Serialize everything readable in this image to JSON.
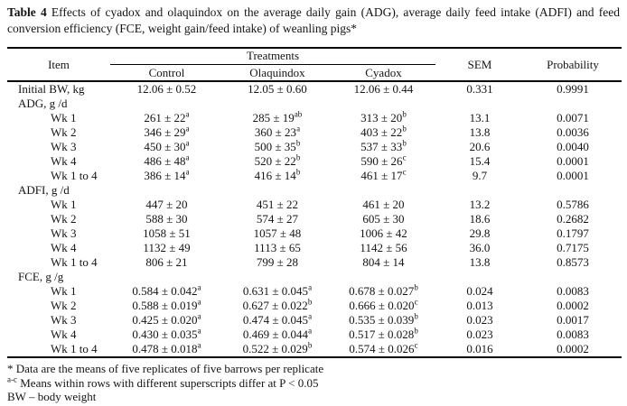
{
  "title": {
    "bold": "Table 4",
    "text": "Effects of cyadox and olaquindox on the average daily gain (ADG), average daily feed intake (ADFI) and feed conversion efficiency (FCE, weight gain/feed intake) of weanling pigs*"
  },
  "table": {
    "columns": {
      "item": "Item",
      "treatments_group": "Treatments",
      "treatments": [
        "Control",
        "Olaquindox",
        "Cyadox"
      ],
      "sem": "SEM",
      "probability": "Probability"
    },
    "rows": [
      {
        "type": "data",
        "label": "Initial BW, kg",
        "indent": false,
        "control": {
          "v": "12.06 ± 0.52"
        },
        "olaquindox": {
          "v": "12.05 ± 0.60"
        },
        "cyadox": {
          "v": "12.06 ± 0.44"
        },
        "sem": "0.331",
        "probability": "0.9991"
      },
      {
        "type": "section",
        "label": "ADG, g /d"
      },
      {
        "type": "data",
        "label": "Wk 1",
        "indent": true,
        "control": {
          "v": "261 ± 22",
          "sup": "a"
        },
        "olaquindox": {
          "v": "285 ± 19",
          "sup": "ab"
        },
        "cyadox": {
          "v": "313 ± 20",
          "sup": "b"
        },
        "sem": "13.1",
        "probability": "0.0071"
      },
      {
        "type": "data",
        "label": "Wk 2",
        "indent": true,
        "control": {
          "v": "346 ± 29",
          "sup": "a"
        },
        "olaquindox": {
          "v": "360 ± 23",
          "sup": "a"
        },
        "cyadox": {
          "v": "403 ± 22",
          "sup": "b"
        },
        "sem": "13.8",
        "probability": "0.0036"
      },
      {
        "type": "data",
        "label": "Wk 3",
        "indent": true,
        "control": {
          "v": "450 ± 30",
          "sup": "a"
        },
        "olaquindox": {
          "v": "500 ± 35",
          "sup": "b"
        },
        "cyadox": {
          "v": "537 ± 33",
          "sup": "b"
        },
        "sem": "20.6",
        "probability": "0.0040"
      },
      {
        "type": "data",
        "label": "Wk 4",
        "indent": true,
        "control": {
          "v": "486 ± 48",
          "sup": "a"
        },
        "olaquindox": {
          "v": "520 ± 22",
          "sup": "b"
        },
        "cyadox": {
          "v": "590 ± 26",
          "sup": "c"
        },
        "sem": "15.4",
        "probability": "0.0001"
      },
      {
        "type": "data",
        "label": "Wk 1 to 4",
        "indent": true,
        "control": {
          "v": "386 ± 14",
          "sup": "a"
        },
        "olaquindox": {
          "v": "416 ± 14",
          "sup": "b"
        },
        "cyadox": {
          "v": "461 ± 17",
          "sup": "c"
        },
        "sem": "9.7",
        "probability": "0.0001"
      },
      {
        "type": "section",
        "label": "ADFI, g /d"
      },
      {
        "type": "data",
        "label": "Wk 1",
        "indent": true,
        "control": {
          "v": "447 ± 20"
        },
        "olaquindox": {
          "v": "451 ± 22"
        },
        "cyadox": {
          "v": "461 ± 20"
        },
        "sem": "13.2",
        "probability": "0.5786"
      },
      {
        "type": "data",
        "label": "Wk 2",
        "indent": true,
        "control": {
          "v": "588 ± 30"
        },
        "olaquindox": {
          "v": "574 ± 27"
        },
        "cyadox": {
          "v": "605 ± 30"
        },
        "sem": "18.6",
        "probability": "0.2682"
      },
      {
        "type": "data",
        "label": "Wk 3",
        "indent": true,
        "control": {
          "v": "1058 ± 51"
        },
        "olaquindox": {
          "v": "1057 ± 48"
        },
        "cyadox": {
          "v": "1006 ± 42"
        },
        "sem": "29.8",
        "probability": "0.1797"
      },
      {
        "type": "data",
        "label": "Wk 4",
        "indent": true,
        "control": {
          "v": "1132 ± 49"
        },
        "olaquindox": {
          "v": "1113 ± 65"
        },
        "cyadox": {
          "v": "1142 ± 56"
        },
        "sem": "36.0",
        "probability": "0.7175"
      },
      {
        "type": "data",
        "label": "Wk 1 to 4",
        "indent": true,
        "control": {
          "v": "806 ± 21"
        },
        "olaquindox": {
          "v": "799 ± 28"
        },
        "cyadox": {
          "v": "804 ± 14"
        },
        "sem": "13.8",
        "probability": "0.8573"
      },
      {
        "type": "section",
        "label": "FCE, g /g"
      },
      {
        "type": "data",
        "label": "Wk 1",
        "indent": true,
        "control": {
          "v": "0.584 ± 0.042",
          "sup": "a"
        },
        "olaquindox": {
          "v": "0.631 ± 0.045",
          "sup": "a"
        },
        "cyadox": {
          "v": "0.678 ± 0.027",
          "sup": "b"
        },
        "sem": "0.024",
        "probability": "0.0083"
      },
      {
        "type": "data",
        "label": "Wk 2",
        "indent": true,
        "control": {
          "v": "0.588 ± 0.019",
          "sup": "a"
        },
        "olaquindox": {
          "v": "0.627 ± 0.022",
          "sup": "b"
        },
        "cyadox": {
          "v": "0.666 ± 0.020",
          "sup": "c"
        },
        "sem": "0.013",
        "probability": "0.0002"
      },
      {
        "type": "data",
        "label": "Wk 3",
        "indent": true,
        "control": {
          "v": "0.425 ± 0.020",
          "sup": "a"
        },
        "olaquindox": {
          "v": "0.474 ± 0.045",
          "sup": "a"
        },
        "cyadox": {
          "v": "0.535 ± 0.039",
          "sup": "b"
        },
        "sem": "0.023",
        "probability": "0.0017"
      },
      {
        "type": "data",
        "label": "Wk 4",
        "indent": true,
        "control": {
          "v": "0.430 ± 0.035",
          "sup": "a"
        },
        "olaquindox": {
          "v": "0.469 ± 0.044",
          "sup": "a"
        },
        "cyadox": {
          "v": "0.517 ± 0.028",
          "sup": "b"
        },
        "sem": "0.023",
        "probability": "0.0083"
      },
      {
        "type": "data",
        "label": "Wk 1 to 4",
        "indent": true,
        "control": {
          "v": "0.478 ± 0.018",
          "sup": "a"
        },
        "olaquindox": {
          "v": "0.522 ± 0.029",
          "sup": "b"
        },
        "cyadox": {
          "v": "0.574 ± 0.026",
          "sup": "c"
        },
        "sem": "0.016",
        "probability": "0.0002"
      }
    ]
  },
  "footnotes": [
    {
      "text": "* Data are the means of five replicates of five barrows per replicate"
    },
    {
      "sup": "a-c",
      "text": "Means within rows with different superscripts differ at P < 0.05"
    },
    {
      "text": "BW – body weight"
    }
  ]
}
